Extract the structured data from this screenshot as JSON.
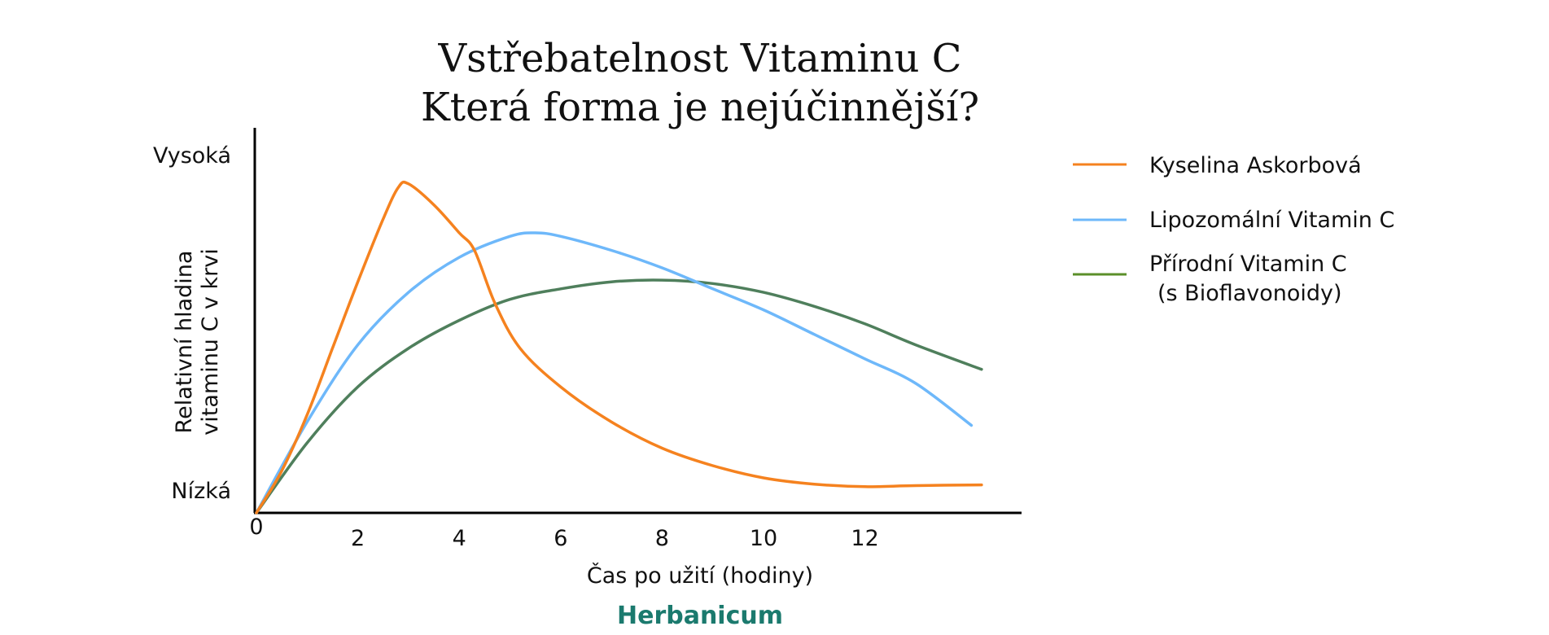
{
  "chart_data": {
    "type": "line",
    "title": "Vstřebatelnost Vitaminu C",
    "subtitle": "Která forma je nejúčinnější?",
    "xlabel": "Čas po užití  (hodiny)",
    "ylabel_lines": [
      "Relativní hladina",
      "vitaminu C v krvi"
    ],
    "y_level_labels": {
      "high": "Vysoká",
      "low": "Nízká"
    },
    "xlim": [
      0,
      15
    ],
    "ylim": [
      0,
      1
    ],
    "x_ticks": [
      "0",
      "2",
      "4",
      "6",
      "8",
      "10",
      "12"
    ],
    "grid": false,
    "legend_position": "right",
    "series": [
      {
        "name": "Kyselina Askorbová",
        "color": "#f5821f",
        "points": [
          [
            0,
            0
          ],
          [
            0.5,
            0.12
          ],
          [
            1,
            0.28
          ],
          [
            1.5,
            0.47
          ],
          [
            2,
            0.66
          ],
          [
            2.5,
            0.84
          ],
          [
            2.8,
            0.93
          ],
          [
            3,
            0.94
          ],
          [
            3.5,
            0.88
          ],
          [
            4,
            0.8
          ],
          [
            4.3,
            0.75
          ],
          [
            4.7,
            0.6
          ],
          [
            5.2,
            0.47
          ],
          [
            6,
            0.36
          ],
          [
            7,
            0.26
          ],
          [
            8,
            0.185
          ],
          [
            9,
            0.135
          ],
          [
            10,
            0.1
          ],
          [
            11,
            0.082
          ],
          [
            12,
            0.075
          ],
          [
            13,
            0.078
          ],
          [
            14.3,
            0.08
          ]
        ]
      },
      {
        "name": "Lipozomální Vitamin C",
        "color": "#6eb8fa",
        "points": [
          [
            0,
            0
          ],
          [
            1,
            0.26
          ],
          [
            2,
            0.48
          ],
          [
            3,
            0.63
          ],
          [
            4,
            0.73
          ],
          [
            5,
            0.79
          ],
          [
            5.5,
            0.8
          ],
          [
            6,
            0.79
          ],
          [
            7,
            0.75
          ],
          [
            8,
            0.7
          ],
          [
            9,
            0.64
          ],
          [
            10,
            0.58
          ],
          [
            11,
            0.51
          ],
          [
            12,
            0.44
          ],
          [
            13,
            0.37
          ],
          [
            14.1,
            0.25
          ]
        ]
      },
      {
        "name": "Přírodní Vitamin C",
        "name_line2": "(s Bioflavonoidy)",
        "color": "#4f7f5c",
        "legend_color": "#5b8f2a",
        "points": [
          [
            0,
            0
          ],
          [
            1,
            0.2
          ],
          [
            2,
            0.36
          ],
          [
            3,
            0.47
          ],
          [
            4,
            0.55
          ],
          [
            5,
            0.61
          ],
          [
            6,
            0.64
          ],
          [
            7,
            0.66
          ],
          [
            8,
            0.665
          ],
          [
            9,
            0.655
          ],
          [
            10,
            0.63
          ],
          [
            11,
            0.59
          ],
          [
            12,
            0.54
          ],
          [
            13,
            0.48
          ],
          [
            14.3,
            0.41
          ]
        ]
      }
    ]
  },
  "brand": {
    "text": "Herbanicum",
    "color": "#1b7a6e"
  }
}
